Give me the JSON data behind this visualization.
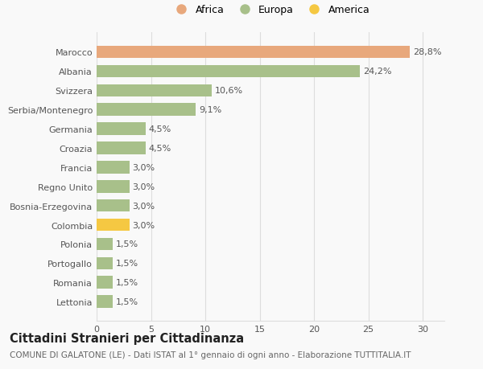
{
  "categories": [
    "Marocco",
    "Albania",
    "Svizzera",
    "Serbia/Montenegro",
    "Germania",
    "Croazia",
    "Francia",
    "Regno Unito",
    "Bosnia-Erzegovina",
    "Colombia",
    "Polonia",
    "Portogallo",
    "Romania",
    "Lettonia"
  ],
  "values": [
    28.8,
    24.2,
    10.6,
    9.1,
    4.5,
    4.5,
    3.0,
    3.0,
    3.0,
    3.0,
    1.5,
    1.5,
    1.5,
    1.5
  ],
  "labels": [
    "28,8%",
    "24,2%",
    "10,6%",
    "9,1%",
    "4,5%",
    "4,5%",
    "3,0%",
    "3,0%",
    "3,0%",
    "3,0%",
    "1,5%",
    "1,5%",
    "1,5%",
    "1,5%"
  ],
  "colors": [
    "#e8a87c",
    "#a8c08a",
    "#a8c08a",
    "#a8c08a",
    "#a8c08a",
    "#a8c08a",
    "#a8c08a",
    "#a8c08a",
    "#a8c08a",
    "#f5c842",
    "#a8c08a",
    "#a8c08a",
    "#a8c08a",
    "#a8c08a"
  ],
  "legend_labels": [
    "Africa",
    "Europa",
    "America"
  ],
  "legend_colors": [
    "#e8a87c",
    "#a8c08a",
    "#f5c842"
  ],
  "title": "Cittadini Stranieri per Cittadinanza",
  "subtitle": "COMUNE DI GALATONE (LE) - Dati ISTAT al 1° gennaio di ogni anno - Elaborazione TUTTITALIA.IT",
  "xlim": [
    0,
    32
  ],
  "xticks": [
    0,
    5,
    10,
    15,
    20,
    25,
    30
  ],
  "background_color": "#f9f9f9",
  "grid_color": "#dddddd",
  "bar_height": 0.65,
  "label_fontsize": 8,
  "tick_fontsize": 8,
  "title_fontsize": 10.5,
  "subtitle_fontsize": 7.5
}
